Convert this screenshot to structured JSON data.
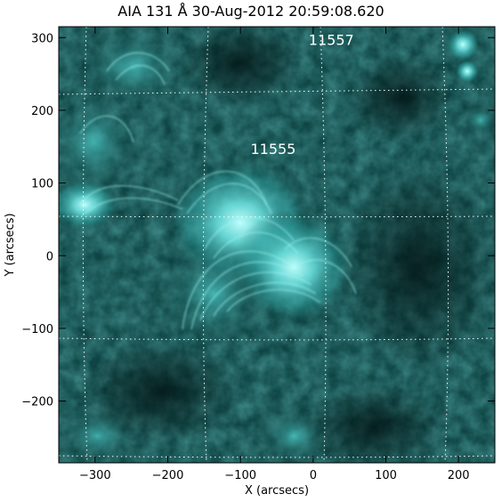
{
  "title": "AIA 131 Å 30-Aug-2012 20:59:08.620",
  "axes": {
    "xlabel": "X (arcsecs)",
    "ylabel": "Y (arcsecs)",
    "xlim": [
      -350,
      250
    ],
    "ylim": [
      -285,
      315
    ],
    "xticks": [
      -300,
      -200,
      -100,
      0,
      100,
      200
    ],
    "yticks": [
      -200,
      -100,
      0,
      100,
      200,
      300
    ],
    "x_tick_labels": [
      "−300",
      "−200",
      "−100",
      "0",
      "100",
      "200"
    ],
    "y_tick_labels": [
      "−200",
      "−100",
      "0",
      "100",
      "200",
      "300"
    ]
  },
  "regions": [
    {
      "label": "11557",
      "x": 25,
      "y": 290
    },
    {
      "label": "11555",
      "x": -55,
      "y": 140
    }
  ],
  "colors": {
    "image_base": "#0b3b3b",
    "image_bright": "#7ff0ee",
    "grid": "#ffffff"
  }
}
